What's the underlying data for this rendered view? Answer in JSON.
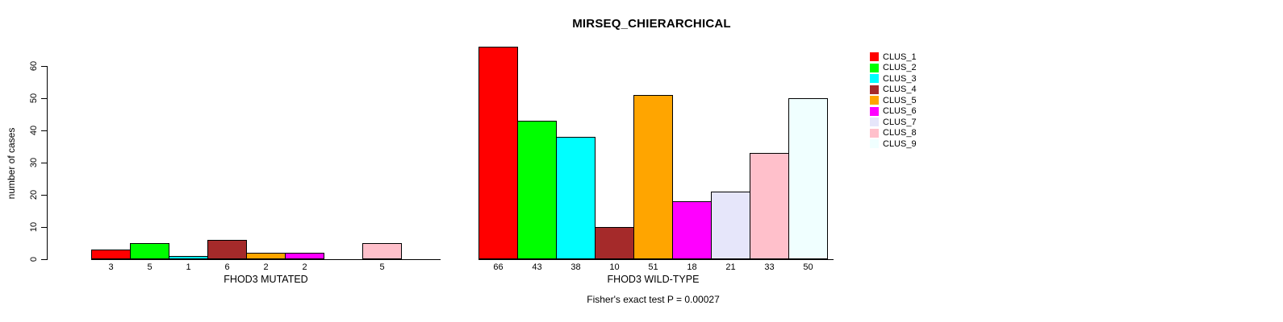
{
  "title": "MIRSEQ_CHIERARCHICAL",
  "footer": "Fisher's exact test P = 0.00027",
  "y_axis": {
    "label": "number of cases",
    "ticks": [
      0,
      10,
      20,
      30,
      40,
      50,
      60
    ],
    "max": 60
  },
  "legend": {
    "items": [
      {
        "label": "CLUS_1",
        "color": "#FF0000"
      },
      {
        "label": "CLUS_2",
        "color": "#00FF00"
      },
      {
        "label": "CLUS_3",
        "color": "#00FFFF"
      },
      {
        "label": "CLUS_4",
        "color": "#A52A2A"
      },
      {
        "label": "CLUS_5",
        "color": "#FFA500"
      },
      {
        "label": "CLUS_6",
        "color": "#FF00FF"
      },
      {
        "label": "CLUS_7",
        "color": "#E6E6FA"
      },
      {
        "label": "CLUS_8",
        "color": "#FFC0CB"
      },
      {
        "label": "CLUS_9",
        "color": "#F0FFFF"
      }
    ]
  },
  "chart_data": [
    {
      "type": "bar",
      "title": "MIRSEQ_CHIERARCHICAL",
      "xlabel": "FHOD3 MUTATED",
      "ylabel": "number of cases",
      "ylim": [
        0,
        60
      ],
      "grid": false,
      "legend_position": "right",
      "categories": [
        "CLUS_1",
        "CLUS_2",
        "CLUS_3",
        "CLUS_4",
        "CLUS_5",
        "CLUS_6",
        "CLUS_7",
        "CLUS_8",
        "CLUS_9"
      ],
      "values": [
        3,
        5,
        1,
        6,
        2,
        2,
        0,
        5,
        0
      ],
      "bar_count_labels": [
        "3",
        "5",
        "1",
        "6",
        "2",
        "2",
        "",
        "5",
        ""
      ],
      "colors": [
        "#FF0000",
        "#00FF00",
        "#00FFFF",
        "#A52A2A",
        "#FFA500",
        "#FF00FF",
        "#E6E6FA",
        "#FFC0CB",
        "#F0FFFF"
      ]
    },
    {
      "type": "bar",
      "title": "MIRSEQ_CHIERARCHICAL",
      "xlabel": "FHOD3 WILD-TYPE",
      "ylabel": "number of cases",
      "ylim": [
        0,
        60
      ],
      "grid": false,
      "legend_position": "right",
      "categories": [
        "CLUS_1",
        "CLUS_2",
        "CLUS_3",
        "CLUS_4",
        "CLUS_5",
        "CLUS_6",
        "CLUS_7",
        "CLUS_8",
        "CLUS_9"
      ],
      "values": [
        66,
        43,
        38,
        10,
        51,
        18,
        21,
        33,
        50
      ],
      "bar_count_labels": [
        "66",
        "43",
        "38",
        "10",
        "51",
        "18",
        "21",
        "33",
        "50"
      ],
      "colors": [
        "#FF0000",
        "#00FF00",
        "#00FFFF",
        "#A52A2A",
        "#FFA500",
        "#FF00FF",
        "#E6E6FA",
        "#FFC0CB",
        "#F0FFFF"
      ]
    }
  ],
  "annotation": "Fisher's exact test P = 0.00027"
}
